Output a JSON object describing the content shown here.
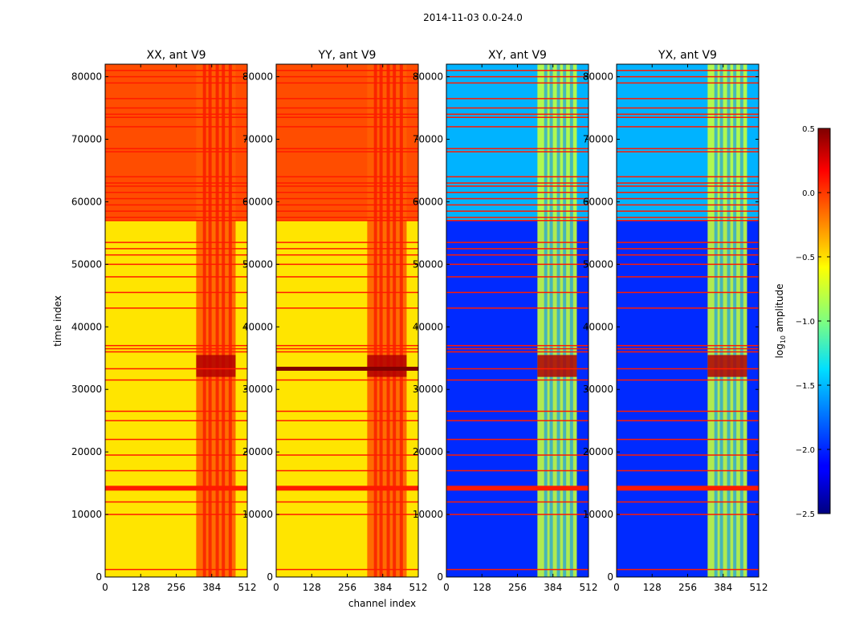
{
  "chart_data": {
    "type": "heatmap",
    "suptitle": "2014-11-03 0.0-24.0",
    "xlabel": "channel index",
    "ylabel": "time index",
    "xlim": [
      0,
      512
    ],
    "ylim": [
      0,
      82000
    ],
    "x_ticks": [
      0,
      128,
      256,
      384,
      512
    ],
    "y_ticks": [
      0,
      10000,
      20000,
      30000,
      40000,
      50000,
      60000,
      70000,
      80000
    ],
    "colorbar": {
      "label": "log10 amplitude",
      "label_main": "log",
      "label_sub": "10",
      "label_rest": " amplitude",
      "range": [
        -2.5,
        0.5
      ],
      "ticks": [
        0.5,
        0.0,
        -0.5,
        -1.0,
        -1.5,
        -2.0,
        -2.5
      ],
      "tick_labels": [
        "0.5",
        "0.0",
        "−0.5",
        "−1.0",
        "−1.5",
        "−2.0",
        "−2.5"
      ],
      "colormap": "jet"
    },
    "panels": [
      {
        "title": "XX, ant V9",
        "base_level": -0.55,
        "upper_level": -0.1,
        "hot_band_start": 328,
        "hot_band_end": 470,
        "hot_band_level": -0.15
      },
      {
        "title": "YY, ant V9",
        "base_level": -0.55,
        "upper_level": -0.1,
        "hot_band_start": 328,
        "hot_band_end": 470,
        "hot_band_level": -0.15
      },
      {
        "title": "XY, ant V9",
        "base_level": -2.0,
        "upper_level": -1.6,
        "hot_band_start": 328,
        "hot_band_end": 470,
        "hot_band_level": -0.8
      },
      {
        "title": "YX, ant V9",
        "base_level": -2.0,
        "upper_level": -1.6,
        "hot_band_start": 328,
        "hot_band_end": 470,
        "hot_band_level": -0.8
      }
    ],
    "flagged_time_rows": [
      1200,
      10000,
      12000,
      14200,
      17000,
      19500,
      22000,
      25000,
      26500,
      31500,
      33300,
      36000,
      36500,
      37000,
      43000,
      45500,
      48000,
      50000,
      51500,
      52500,
      53500,
      57000,
      57500,
      58500,
      59500,
      60500,
      61500,
      62500,
      63000,
      64000,
      68000,
      68500,
      72000,
      73500,
      74000,
      75000,
      76500,
      79000,
      80000,
      81000
    ]
  }
}
